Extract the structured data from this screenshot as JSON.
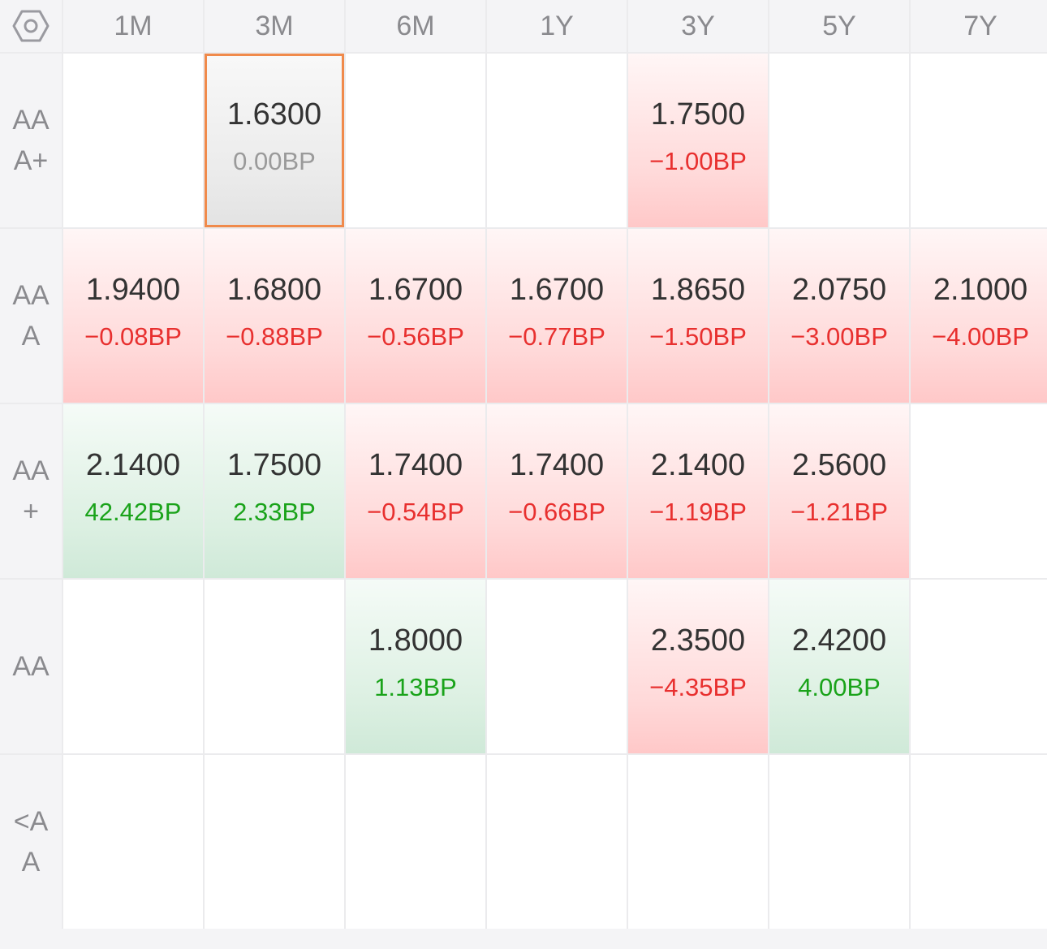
{
  "header": {
    "settings_icon": "hexagon-settings-icon",
    "tenors": [
      "1M",
      "3M",
      "6M",
      "1Y",
      "3Y",
      "5Y",
      "7Y"
    ]
  },
  "ratings": [
    "AA\nA+",
    "AA\nA",
    "AA\n+",
    "AA",
    "<A\nA"
  ],
  "colors": {
    "down": "#e8302f",
    "up": "#1aa31a",
    "flat": "#9a9a9a",
    "selected_border": "#f08a4b"
  },
  "rows": [
    {
      "cells": [
        null,
        {
          "rate": "1.6300",
          "change": "0.00BP",
          "dir": "flat",
          "selected": true
        },
        null,
        null,
        {
          "rate": "1.7500",
          "change": "−1.00BP",
          "dir": "down"
        },
        null,
        null
      ]
    },
    {
      "cells": [
        {
          "rate": "1.9400",
          "change": "−0.08BP",
          "dir": "down"
        },
        {
          "rate": "1.6800",
          "change": "−0.88BP",
          "dir": "down"
        },
        {
          "rate": "1.6700",
          "change": "−0.56BP",
          "dir": "down"
        },
        {
          "rate": "1.6700",
          "change": "−0.77BP",
          "dir": "down"
        },
        {
          "rate": "1.8650",
          "change": "−1.50BP",
          "dir": "down"
        },
        {
          "rate": "2.0750",
          "change": "−3.00BP",
          "dir": "down"
        },
        {
          "rate": "2.1000",
          "change": "−4.00BP",
          "dir": "down"
        }
      ]
    },
    {
      "cells": [
        {
          "rate": "2.1400",
          "change": "42.42BP",
          "dir": "up"
        },
        {
          "rate": "1.7500",
          "change": "2.33BP",
          "dir": "up"
        },
        {
          "rate": "1.7400",
          "change": "−0.54BP",
          "dir": "down"
        },
        {
          "rate": "1.7400",
          "change": "−0.66BP",
          "dir": "down"
        },
        {
          "rate": "2.1400",
          "change": "−1.19BP",
          "dir": "down"
        },
        {
          "rate": "2.5600",
          "change": "−1.21BP",
          "dir": "down"
        },
        null
      ]
    },
    {
      "cells": [
        null,
        null,
        {
          "rate": "1.8000",
          "change": "1.13BP",
          "dir": "up"
        },
        null,
        {
          "rate": "2.3500",
          "change": "−4.35BP",
          "dir": "down"
        },
        {
          "rate": "2.4200",
          "change": "4.00BP",
          "dir": "up"
        },
        null
      ]
    },
    {
      "cells": [
        null,
        null,
        null,
        null,
        null,
        null,
        null
      ]
    }
  ]
}
